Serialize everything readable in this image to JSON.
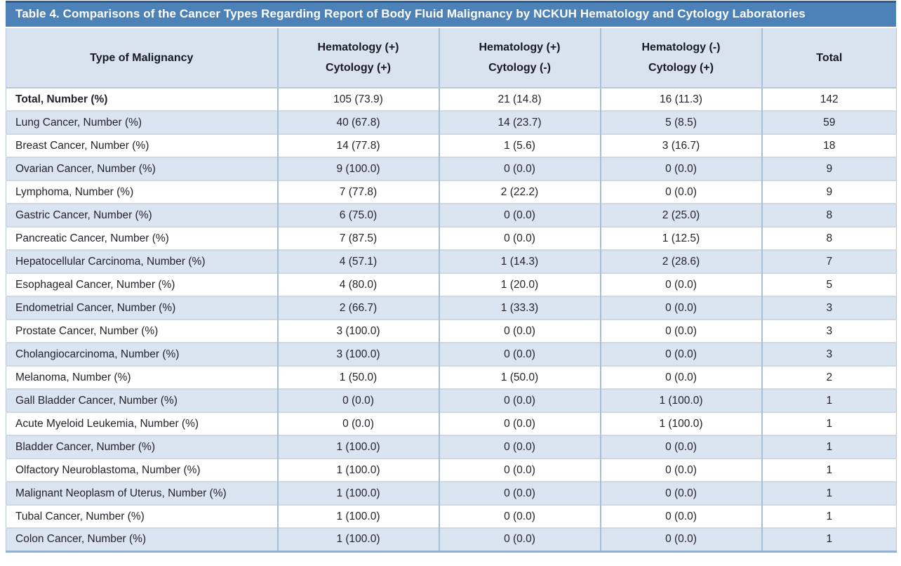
{
  "table": {
    "title": "Table 4. Comparisons of the Cancer Types Regarding Report of Body Fluid Malignancy by NCKUH Hematology and Cytology Laboratories",
    "columns": [
      {
        "line1": "Type of Malignancy",
        "line2": ""
      },
      {
        "line1": "Hematology (+)",
        "line2": "Cytology (+)"
      },
      {
        "line1": "Hematology (+)",
        "line2": "Cytology (-)"
      },
      {
        "line1": "Hematology (-)",
        "line2": "Cytology (+)"
      },
      {
        "line1": "Total",
        "line2": ""
      }
    ],
    "rows": [
      {
        "label": "Total, Number (%)",
        "bold": true,
        "values": [
          "105 (73.9)",
          "21 (14.8)",
          "16 (11.3)",
          "142"
        ]
      },
      {
        "label": "Lung Cancer, Number (%)",
        "bold": false,
        "values": [
          "40 (67.8)",
          "14 (23.7)",
          "5 (8.5)",
          "59"
        ]
      },
      {
        "label": "Breast Cancer, Number (%)",
        "bold": false,
        "values": [
          "14 (77.8)",
          "1 (5.6)",
          "3 (16.7)",
          "18"
        ]
      },
      {
        "label": "Ovarian Cancer, Number (%)",
        "bold": false,
        "values": [
          "9 (100.0)",
          "0 (0.0)",
          "0 (0.0)",
          "9"
        ]
      },
      {
        "label": "Lymphoma, Number (%)",
        "bold": false,
        "values": [
          "7 (77.8)",
          "2 (22.2)",
          "0 (0.0)",
          "9"
        ]
      },
      {
        "label": "Gastric Cancer, Number (%)",
        "bold": false,
        "values": [
          "6 (75.0)",
          "0 (0.0)",
          "2 (25.0)",
          "8"
        ]
      },
      {
        "label": "Pancreatic Cancer, Number (%)",
        "bold": false,
        "values": [
          "7 (87.5)",
          "0 (0.0)",
          "1 (12.5)",
          "8"
        ]
      },
      {
        "label": "Hepatocellular Carcinoma, Number (%)",
        "bold": false,
        "values": [
          "4 (57.1)",
          "1 (14.3)",
          "2 (28.6)",
          "7"
        ]
      },
      {
        "label": "Esophageal Cancer, Number (%)",
        "bold": false,
        "values": [
          "4 (80.0)",
          "1 (20.0)",
          "0 (0.0)",
          "5"
        ]
      },
      {
        "label": "Endometrial Cancer, Number (%)",
        "bold": false,
        "values": [
          "2 (66.7)",
          "1 (33.3)",
          "0 (0.0)",
          "3"
        ]
      },
      {
        "label": "Prostate Cancer, Number (%)",
        "bold": false,
        "values": [
          "3 (100.0)",
          "0 (0.0)",
          "0 (0.0)",
          "3"
        ]
      },
      {
        "label": "Cholangiocarcinoma, Number (%)",
        "bold": false,
        "values": [
          "3 (100.0)",
          "0 (0.0)",
          "0 (0.0)",
          "3"
        ]
      },
      {
        "label": "Melanoma, Number (%)",
        "bold": false,
        "values": [
          "1 (50.0)",
          "1 (50.0)",
          "0 (0.0)",
          "2"
        ]
      },
      {
        "label": "Gall Bladder Cancer, Number (%)",
        "bold": false,
        "values": [
          "0 (0.0)",
          "0 (0.0)",
          "1 (100.0)",
          "1"
        ]
      },
      {
        "label": "Acute Myeloid Leukemia, Number (%)",
        "bold": false,
        "values": [
          "0 (0.0)",
          "0 (0.0)",
          "1 (100.0)",
          "1"
        ]
      },
      {
        "label": "Bladder Cancer, Number (%)",
        "bold": false,
        "values": [
          "1 (100.0)",
          "0 (0.0)",
          "0 (0.0)",
          "1"
        ]
      },
      {
        "label": "Olfactory Neuroblastoma, Number (%)",
        "bold": false,
        "values": [
          "1 (100.0)",
          "0 (0.0)",
          "0 (0.0)",
          "1"
        ]
      },
      {
        "label": "Malignant Neoplasm of Uterus, Number (%)",
        "bold": false,
        "values": [
          "1 (100.0)",
          "0 (0.0)",
          "0 (0.0)",
          "1"
        ]
      },
      {
        "label": "Tubal Cancer, Number (%)",
        "bold": false,
        "values": [
          "1 (100.0)",
          "0 (0.0)",
          "0 (0.0)",
          "1"
        ]
      },
      {
        "label": "Colon Cancer, Number (%)",
        "bold": false,
        "values": [
          "1 (100.0)",
          "0 (0.0)",
          "0 (0.0)",
          "1"
        ]
      }
    ],
    "colors": {
      "title_bar": "#4d82b8",
      "title_border_top": "#2f5c8e",
      "header_bg": "#d9e2ef",
      "stripe_bg": "#dbe4f1",
      "grid_vertical": "#a9bfd6",
      "grid_horizontal": "#ccd8e6",
      "outer_side": "#b3c6da",
      "bottom_border": "#93b0cd",
      "title_text": "#ffffff",
      "header_text": "#191923",
      "body_text": "#23232b"
    }
  }
}
